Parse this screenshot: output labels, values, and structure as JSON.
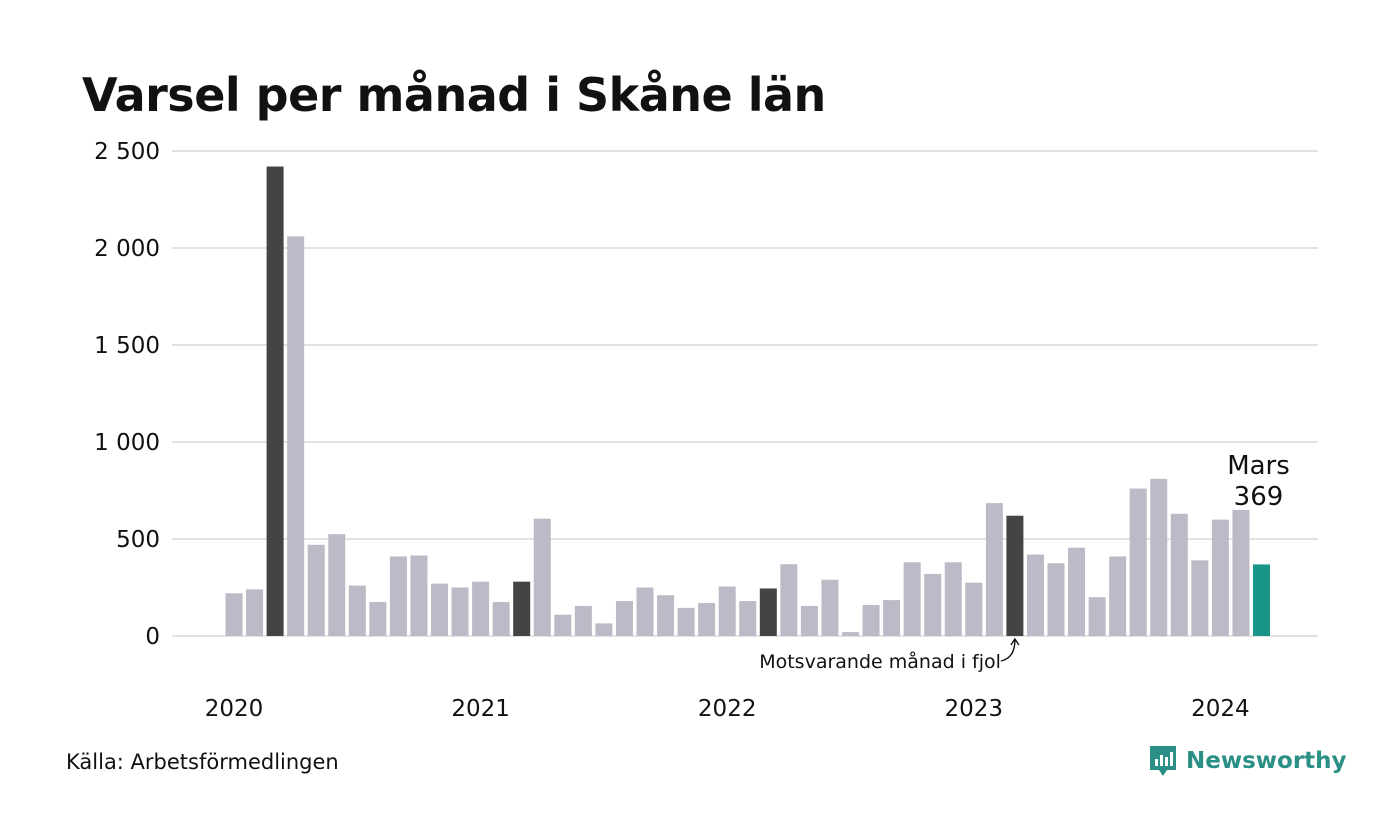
{
  "chart_data": {
    "type": "bar",
    "title": "Varsel per månad i Skåne län",
    "ylim": [
      0,
      2500
    ],
    "yticks": [
      0,
      500,
      1000,
      1500,
      2000,
      2500
    ],
    "ytick_labels": [
      "0",
      "500",
      "1 000",
      "1 500",
      "2 000",
      "2 500"
    ],
    "year_labels": [
      "2020",
      "2021",
      "2022",
      "2023",
      "2024"
    ],
    "grid": true,
    "series": [
      {
        "values": [
          220,
          240,
          2420,
          2060,
          470,
          525,
          260,
          175,
          410,
          415,
          270,
          250,
          280,
          175,
          280,
          605,
          110,
          155,
          65,
          180,
          250,
          210,
          145,
          170,
          255,
          180,
          245,
          370,
          155,
          290,
          20,
          160,
          185,
          380,
          320,
          380,
          275,
          685,
          620,
          420,
          375,
          455,
          200,
          410,
          760,
          810,
          630,
          390,
          600,
          650,
          369
        ],
        "colors": [
          "#bbbac6",
          "#bbbac6",
          "#444444",
          "#bbbac6",
          "#bbbac6",
          "#bbbac6",
          "#bbbac6",
          "#bbbac6",
          "#bbbac6",
          "#bbbac6",
          "#bbbac6",
          "#bbbac6",
          "#bbbac6",
          "#bbbac6",
          "#444444",
          "#bbbac6",
          "#bbbac6",
          "#bbbac6",
          "#bbbac6",
          "#bbbac6",
          "#bbbac6",
          "#bbbac6",
          "#bbbac6",
          "#bbbac6",
          "#bbbac6",
          "#bbbac6",
          "#444444",
          "#bbbac6",
          "#bbbac6",
          "#bbbac6",
          "#bbbac6",
          "#bbbac6",
          "#bbbac6",
          "#bbbac6",
          "#bbbac6",
          "#bbbac6",
          "#bbbac6",
          "#bbbac6",
          "#444444",
          "#bbbac6",
          "#bbbac6",
          "#bbbac6",
          "#bbbac6",
          "#bbbac6",
          "#bbbac6",
          "#bbbac6",
          "#bbbac6",
          "#bbbac6",
          "#bbbac6",
          "#bbbac6",
          "#1a9688"
        ]
      }
    ],
    "annotations": {
      "last_month_label": "Mars",
      "last_value_label": "369",
      "same_month_last_year": "Motsvarande månad i fjol"
    }
  },
  "footer": {
    "source": "Källa: Arbetsförmedlingen",
    "brand": "Newsworthy"
  },
  "colors": {
    "bar": "#bbbac6",
    "highlight": "#444444",
    "current": "#1a9688",
    "grid": "#e2e2e2",
    "brand": "#2a8f84"
  }
}
